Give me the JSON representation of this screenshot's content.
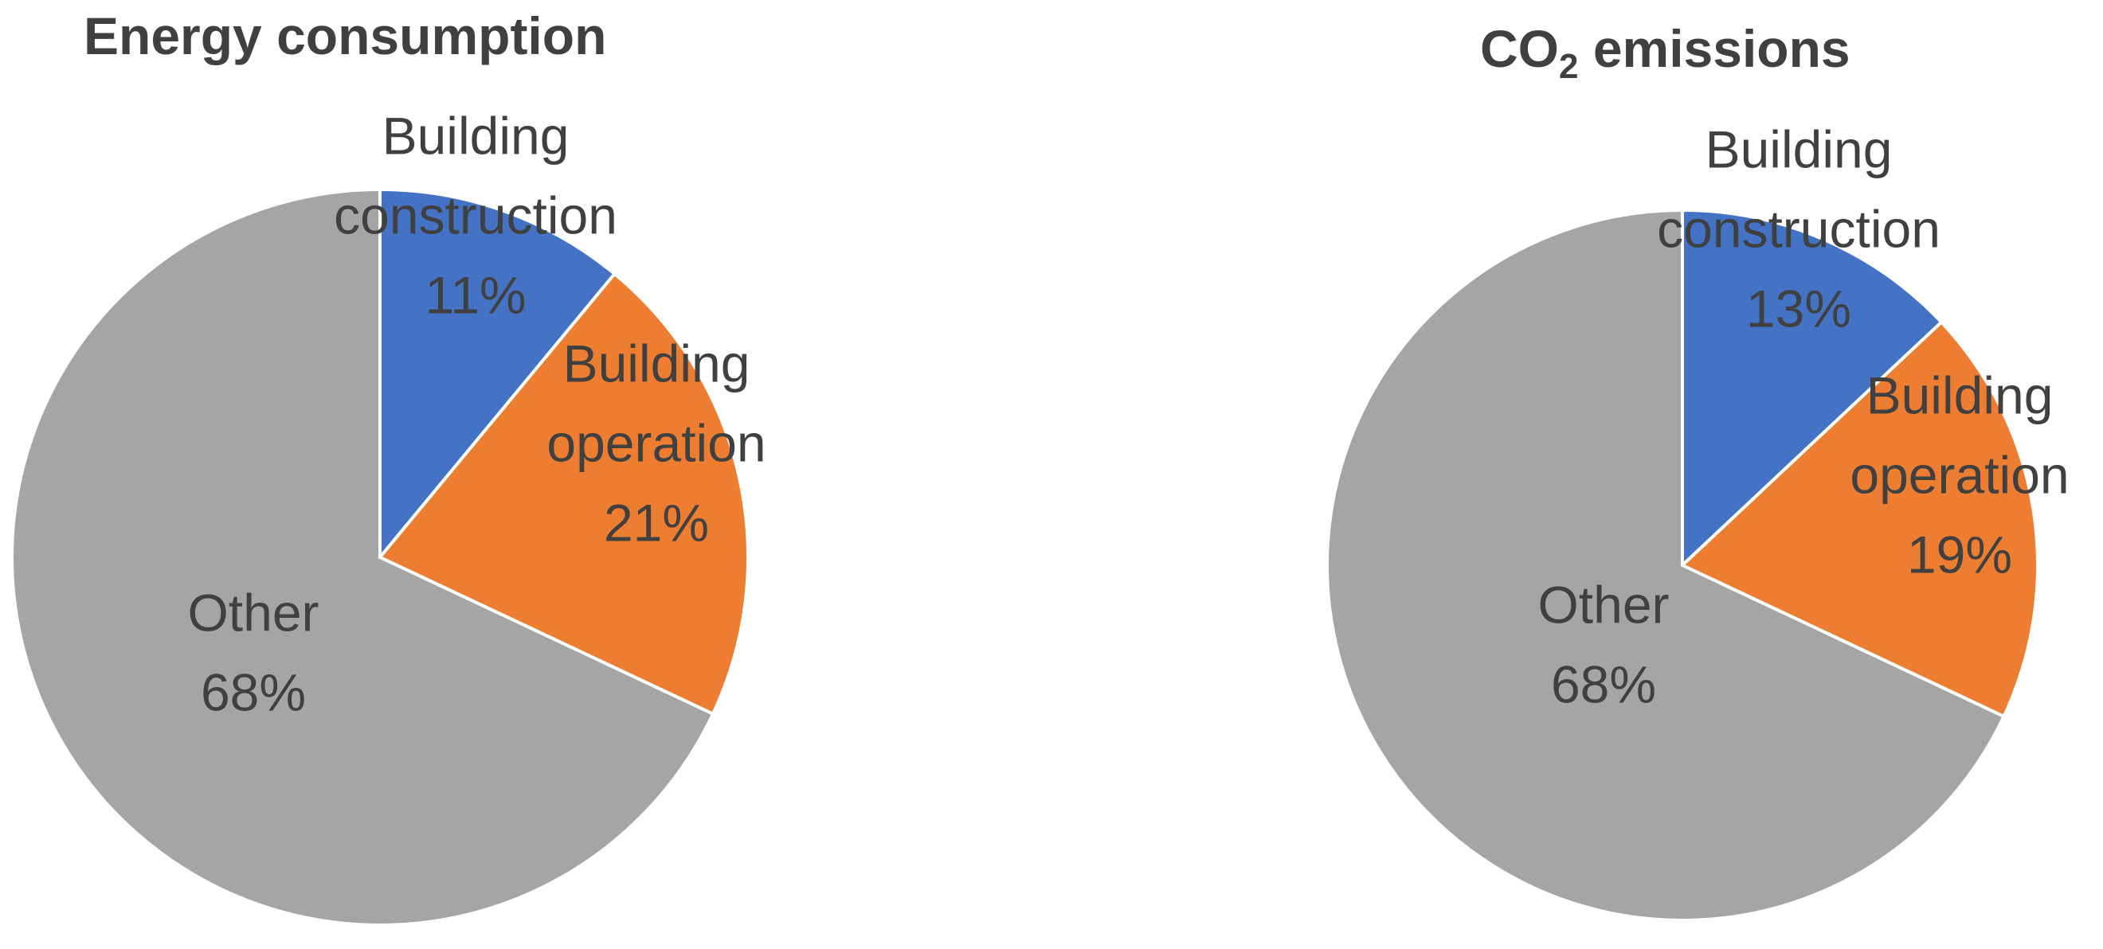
{
  "chart_data": [
    {
      "type": "pie",
      "title": "Energy consumption",
      "start_angle_deg": 0,
      "direction": "clockwise",
      "slices": [
        {
          "label": [
            "Building",
            "construction"
          ],
          "value": 11,
          "value_label": "11%",
          "color": "#4472C4"
        },
        {
          "label": [
            "Building",
            "operation"
          ],
          "value": 21,
          "value_label": "21%",
          "color": "#ED7D31"
        },
        {
          "label": [
            "Other"
          ],
          "value": 68,
          "value_label": "68%",
          "color": "#A5A5A5"
        }
      ]
    },
    {
      "type": "pie",
      "title": "CO",
      "title_subscript": "2",
      "title_suffix": " emissions",
      "start_angle_deg": 0,
      "direction": "clockwise",
      "slices": [
        {
          "label": [
            "Building",
            "construction"
          ],
          "value": 13,
          "value_label": "13%",
          "color": "#4472C4"
        },
        {
          "label": [
            "Building",
            "operation"
          ],
          "value": 19,
          "value_label": "19%",
          "color": "#ED7D31"
        },
        {
          "label": [
            "Other"
          ],
          "value": 68,
          "value_label": "68%",
          "color": "#A5A5A5"
        }
      ]
    }
  ]
}
